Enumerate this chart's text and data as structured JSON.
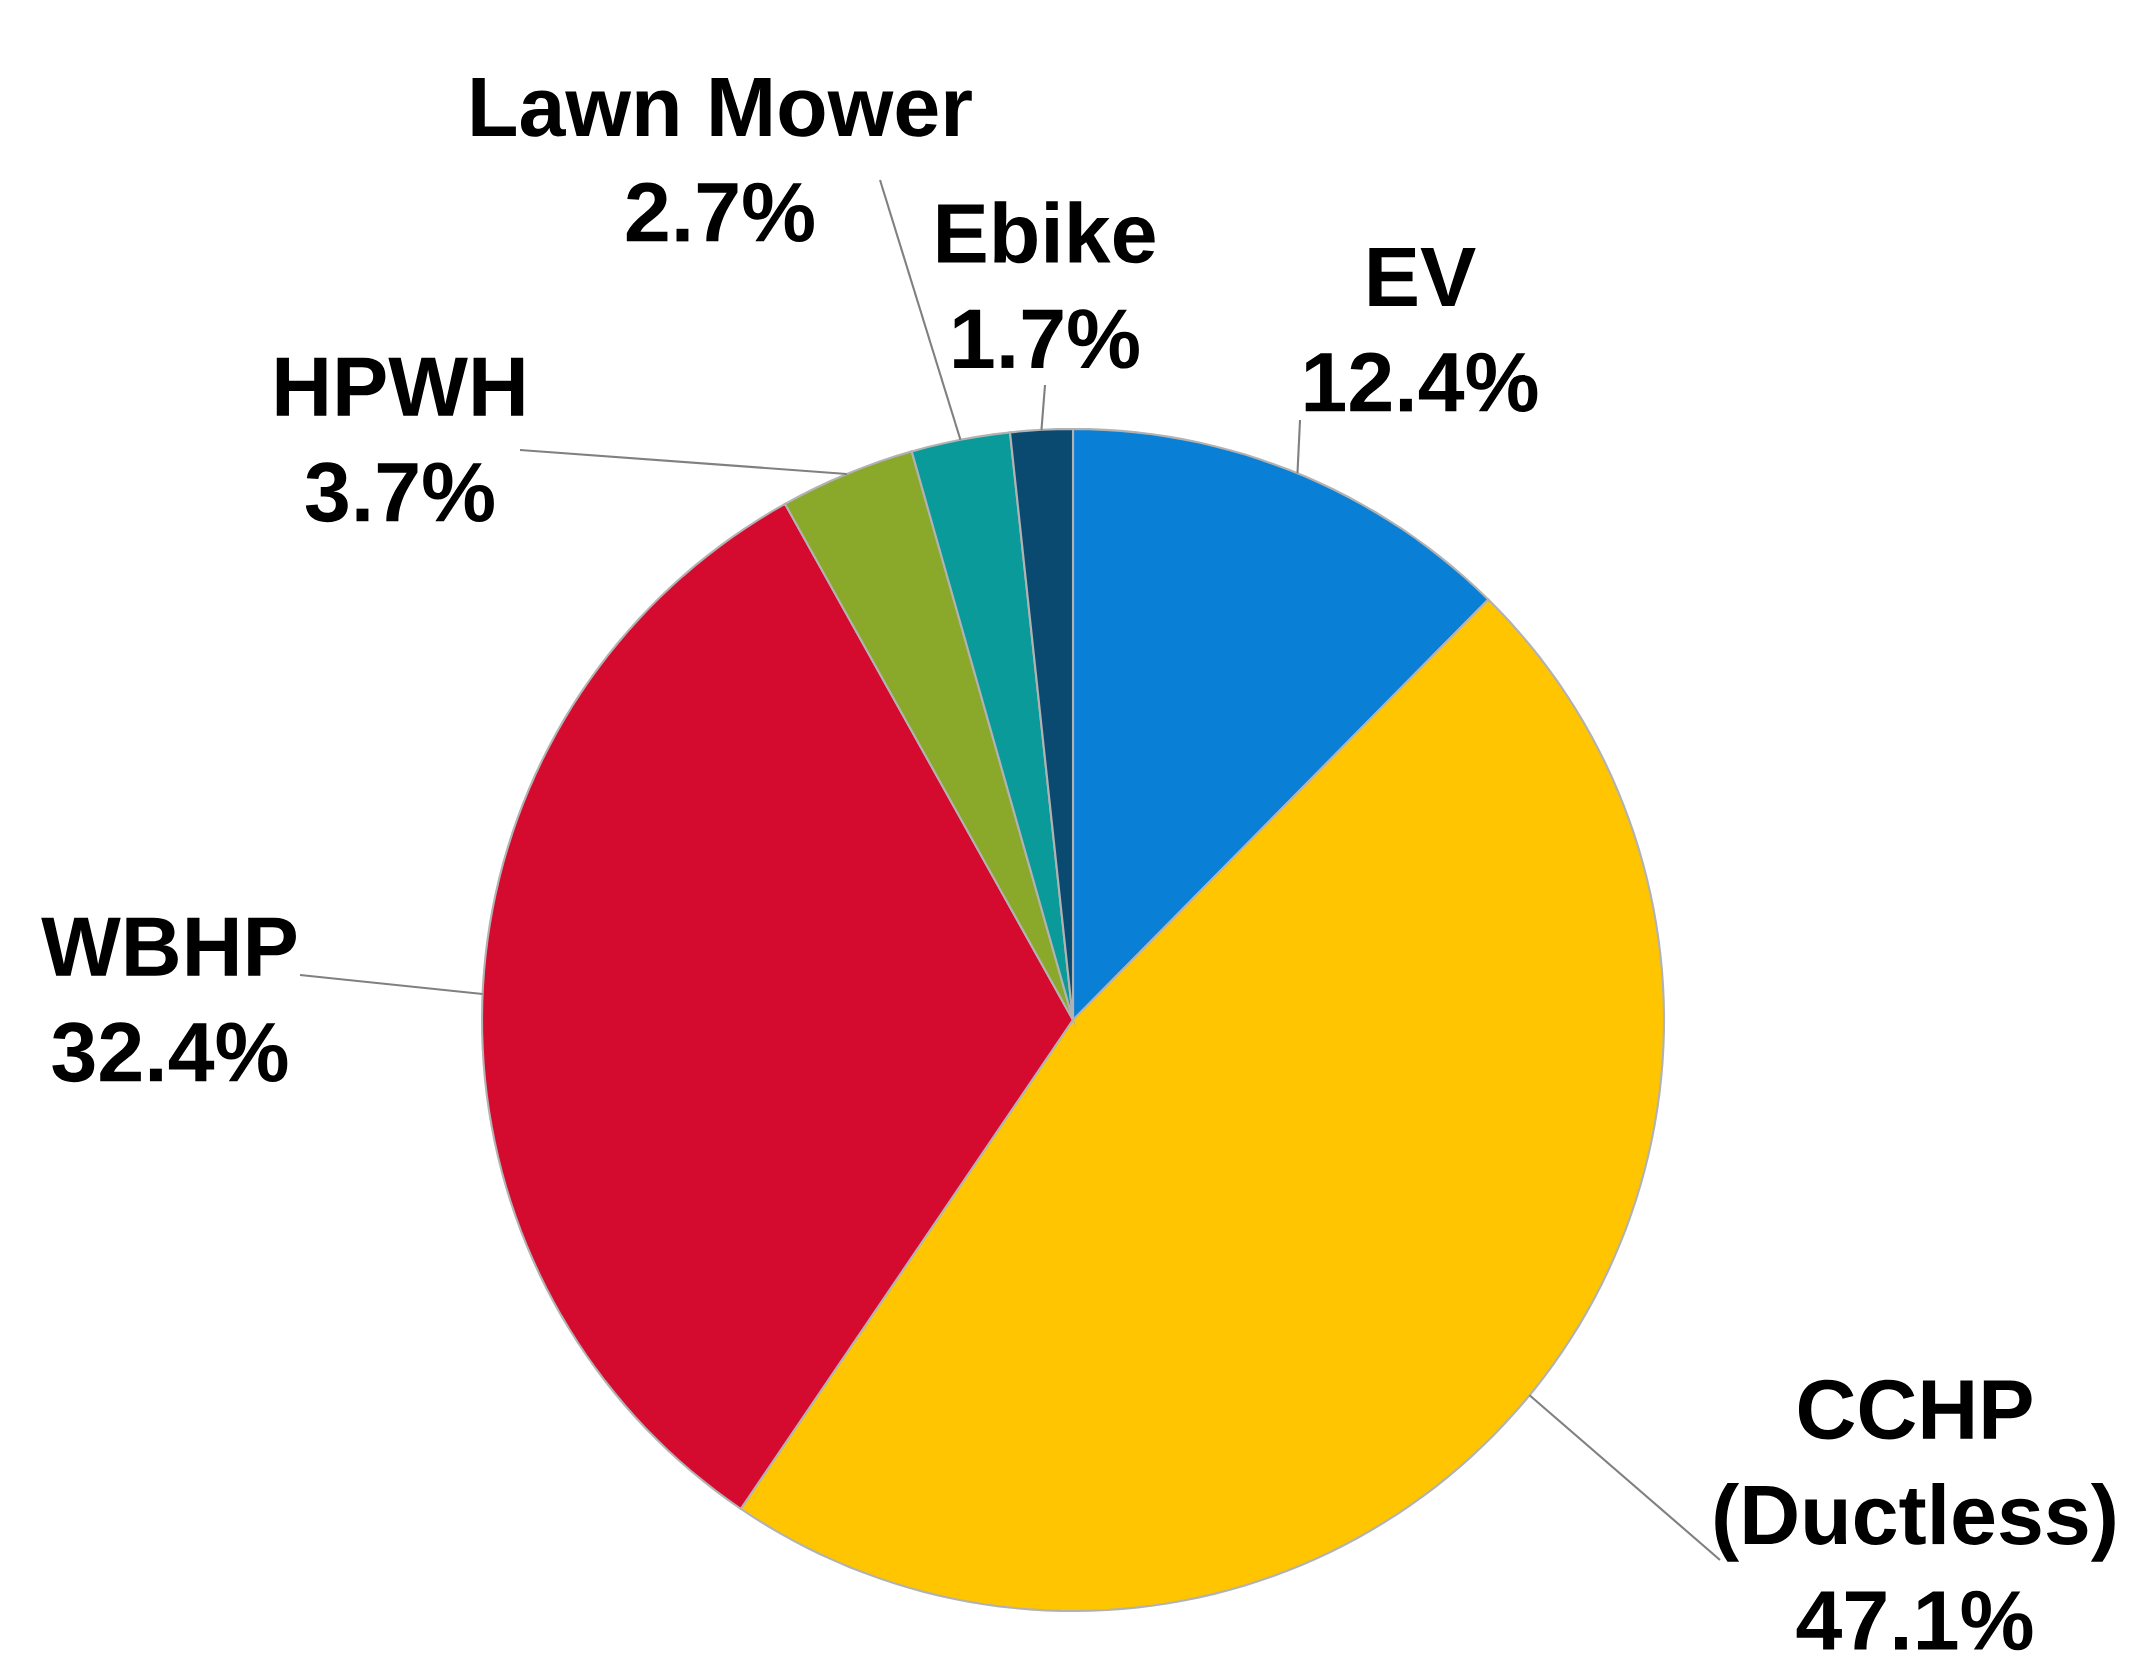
{
  "chart_data": {
    "type": "pie",
    "categories": [
      "EV",
      "CCHP (Ductless)",
      "WBHP",
      "HPWH",
      "Lawn Mower",
      "Ebike"
    ],
    "values": [
      12.4,
      47.1,
      32.4,
      3.7,
      2.7,
      1.7
    ],
    "value_labels": [
      "12.4%",
      "47.1%",
      "32.4%",
      "3.7%",
      "2.7%",
      "1.7%"
    ],
    "colors": [
      "#0a7fd6",
      "#fec500",
      "#d40a2e",
      "#8aa82a",
      "#0a9a9a",
      "#0a4a70"
    ]
  }
}
